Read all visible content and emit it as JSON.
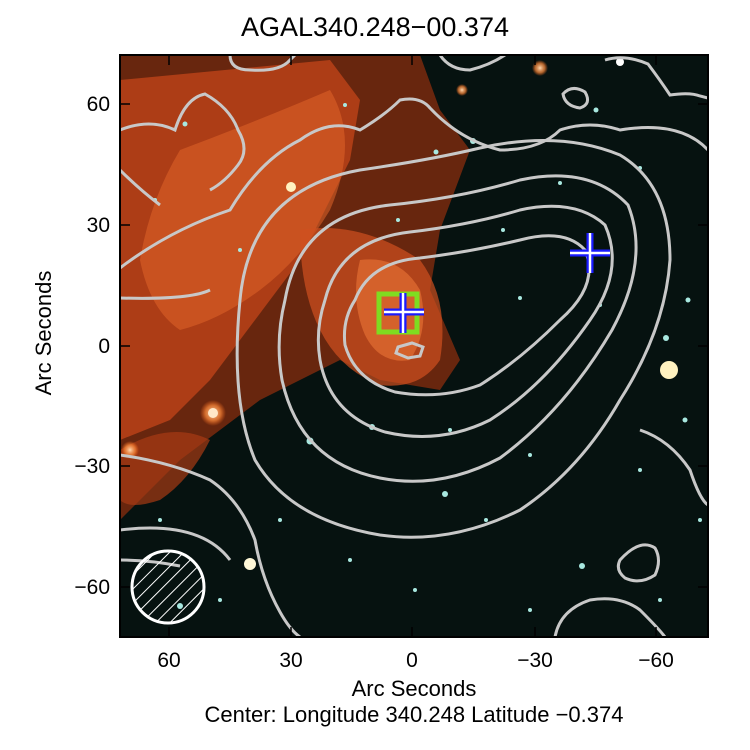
{
  "title": "AGAL340.248−00.374",
  "xlabel": "Arc Seconds",
  "ylabel": "Arc Seconds",
  "footer": "Center:  Longitude 340.248 Latitude −0.374",
  "x_ticks": [
    "60",
    "30",
    "0",
    "−30",
    "−60"
  ],
  "y_ticks": [
    "60",
    "30",
    "0",
    "−30",
    "−60"
  ],
  "colors": {
    "background": "#061210",
    "emission": "#c4461a",
    "contours": "#c8c8c8",
    "box": "#7fdc20",
    "marker": "#1a1aff"
  },
  "markers": {
    "box_position": [
      2,
      8
    ],
    "cross_positions": [
      [
        0,
        8
      ],
      [
        -45,
        24
      ]
    ],
    "beam_circle_center": [
      60,
      -60
    ]
  }
}
